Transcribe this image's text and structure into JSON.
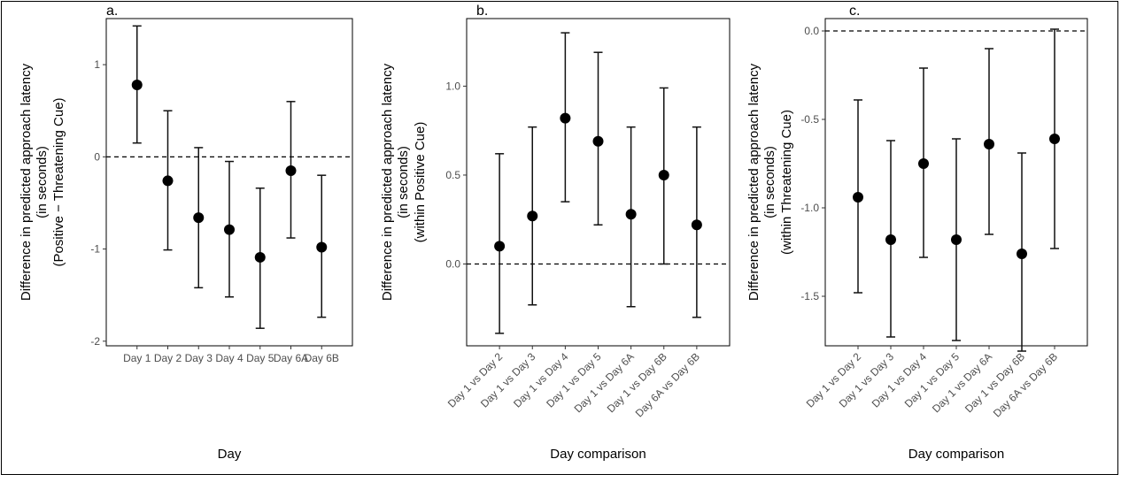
{
  "chart_data": [
    {
      "type": "scatter",
      "panel_label": "a.",
      "xlabel": "Day",
      "ylabel": [
        "Difference in predicted approach latency",
        "(in seconds)",
        "(Positive − Threatening Cue)"
      ],
      "categories": [
        "Day 1",
        "Day 2",
        "Day 3",
        "Day 4",
        "Day 5",
        "Day 6A",
        "Day 6B"
      ],
      "estimate": [
        0.78,
        -0.26,
        -0.66,
        -0.79,
        -1.09,
        -0.15,
        -0.98
      ],
      "lower": [
        0.15,
        -1.01,
        -1.42,
        -1.52,
        -1.86,
        -0.88,
        -1.74
      ],
      "upper": [
        1.42,
        0.5,
        0.1,
        -0.05,
        -0.34,
        0.6,
        -0.2
      ],
      "ylim": [
        -2.05,
        1.5
      ],
      "yticks": [
        1,
        0,
        -1,
        -2
      ],
      "ytick_labels": [
        "1",
        "0",
        "-1",
        "-2"
      ],
      "reference_line": 0,
      "rotate_xticks": false
    },
    {
      "type": "scatter",
      "panel_label": "b.",
      "xlabel": "Day comparison",
      "ylabel": [
        "Difference in predicted approach latency",
        "(in seconds)",
        "(within Positive Cue)"
      ],
      "categories": [
        "Day 1 vs Day 2",
        "Day 1 vs Day 3",
        "Day 1 vs Day 4",
        "Day 1 vs Day 5",
        "Day 1 vs Day 6A",
        "Day 1 vs Day 6B",
        "Day 6A vs Day 6B"
      ],
      "estimate": [
        0.1,
        0.27,
        0.82,
        0.69,
        0.28,
        0.5,
        0.22
      ],
      "lower": [
        -0.39,
        -0.23,
        0.35,
        0.22,
        -0.24,
        0.0,
        -0.3
      ],
      "upper": [
        0.62,
        0.77,
        1.3,
        1.19,
        0.77,
        0.99,
        0.77
      ],
      "ylim": [
        -0.46,
        1.38
      ],
      "yticks": [
        1.0,
        0.5,
        0.0
      ],
      "ytick_labels": [
        "1.0",
        "0.5",
        "0.0"
      ],
      "reference_line": 0,
      "rotate_xticks": true
    },
    {
      "type": "scatter",
      "panel_label": "c.",
      "xlabel": "Day comparison",
      "ylabel": [
        "Difference in predicted approach latency",
        "(in seconds)",
        "(within Threatening Cue)"
      ],
      "categories": [
        "Day 1 vs Day 2",
        "Day 1 vs Day 3",
        "Day 1 vs Day 4",
        "Day 1 vs Day 5",
        "Day 1 vs Day 6A",
        "Day 1 vs Day 6B",
        "Day 6A vs Day 6B"
      ],
      "estimate": [
        -0.94,
        -1.18,
        -0.75,
        -1.18,
        -0.64,
        -1.26,
        -0.61
      ],
      "lower": [
        -1.48,
        -1.73,
        -1.28,
        -1.75,
        -1.15,
        -1.81,
        -1.23
      ],
      "upper": [
        -0.39,
        -0.62,
        -0.21,
        -0.61,
        -0.1,
        -0.69,
        0.01
      ],
      "ylim": [
        -1.78,
        0.07
      ],
      "yticks": [
        0.0,
        -0.5,
        -1.0,
        -1.5
      ],
      "ytick_labels": [
        "0.0",
        "-0.5",
        "-1.0",
        "-1.5"
      ],
      "reference_line": 0,
      "rotate_xticks": true
    }
  ]
}
